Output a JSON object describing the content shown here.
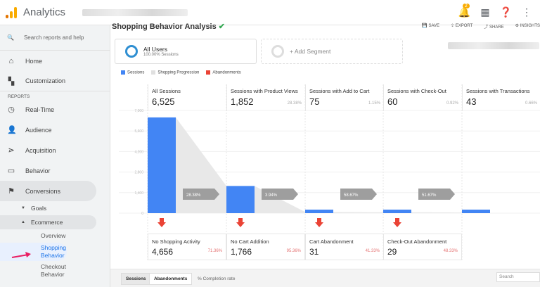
{
  "app": {
    "name": "Analytics",
    "notification_count": "2"
  },
  "sidebar": {
    "search_placeholder": "Search reports and help",
    "section_label": "REPORTS",
    "items": [
      {
        "label": "Home",
        "icon": "home-icon"
      },
      {
        "label": "Customization",
        "icon": "dashboard-icon"
      },
      {
        "label": "Real-Time",
        "icon": "clock-icon"
      },
      {
        "label": "Audience",
        "icon": "person-icon"
      },
      {
        "label": "Acquisition",
        "icon": "acquisition-icon"
      },
      {
        "label": "Behavior",
        "icon": "behavior-icon"
      },
      {
        "label": "Conversions",
        "icon": "flag-icon"
      }
    ],
    "sub": {
      "goals": "Goals",
      "ecommerce": "Ecommerce"
    },
    "leaves": [
      "Overview",
      "Shopping Behavior",
      "Checkout Behavior"
    ]
  },
  "header": {
    "title": "Shopping Behavior Analysis",
    "actions": [
      "SAVE",
      "EXPORT",
      "SHARE",
      "INSIGHTS"
    ]
  },
  "segments": {
    "active": {
      "name": "All Users",
      "sub": "100.00% Sessions"
    },
    "add": "+ Add Segment"
  },
  "legend": [
    {
      "label": "Sessions",
      "color": "#4285f4"
    },
    {
      "label": "Shopping Progression",
      "color": "#e0e0e0"
    },
    {
      "label": "Abandonments",
      "color": "#ea4335"
    }
  ],
  "chart_data": {
    "type": "bar",
    "ylim": [
      0,
      7000
    ],
    "yticks": [
      "7,000",
      "5,600",
      "4,200",
      "2,800",
      "1,400",
      "0"
    ],
    "stages": [
      {
        "label": "All Sessions",
        "value": 6525,
        "display": "6,525",
        "pct": ""
      },
      {
        "label": "Sessions with Product Views",
        "value": 1852,
        "display": "1,852",
        "pct": "28.38%"
      },
      {
        "label": "Sessions with Add to Cart",
        "value": 75,
        "display": "75",
        "pct": "1.15%"
      },
      {
        "label": "Sessions with Check-Out",
        "value": 60,
        "display": "60",
        "pct": "0.92%"
      },
      {
        "label": "Sessions with Transactions",
        "value": 43,
        "display": "43",
        "pct": "0.66%"
      }
    ],
    "progression": [
      "28.38%",
      "3.94%",
      "58.67%",
      "51.67%"
    ],
    "abandonments": [
      {
        "label": "No Shopping Activity",
        "display": "4,656",
        "pct": "71.36%"
      },
      {
        "label": "No Cart Addition",
        "display": "1,766",
        "pct": "95.36%"
      },
      {
        "label": "Cart Abandonment",
        "display": "31",
        "pct": "41.33%"
      },
      {
        "label": "Check-Out Abandonment",
        "display": "29",
        "pct": "48.33%"
      }
    ]
  },
  "bottom": {
    "tabs": [
      "Sessions",
      "Abandonments"
    ],
    "metric": "% Completion rate",
    "search_placeholder": "Search"
  }
}
